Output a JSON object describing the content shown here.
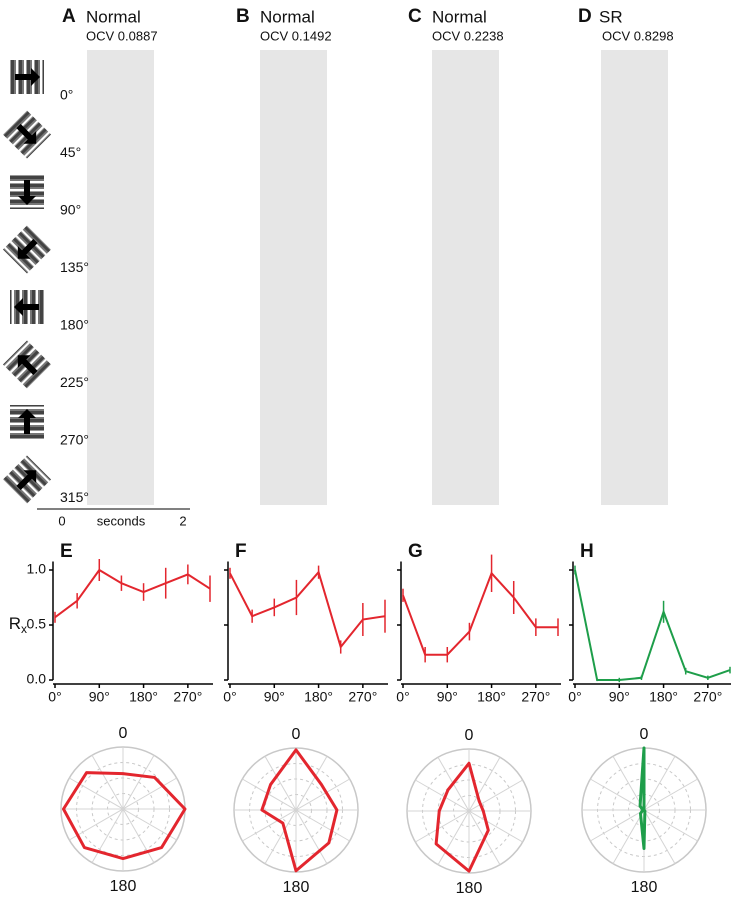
{
  "rasters": {
    "panels": [
      {
        "letter": "A",
        "condition": "Normal",
        "ocv": "OCV 0.0887"
      },
      {
        "letter": "B",
        "condition": "Normal",
        "ocv": "OCV 0.1492"
      },
      {
        "letter": "C",
        "condition": "Normal",
        "ocv": "OCV 0.2238"
      },
      {
        "letter": "D",
        "condition": "SR",
        "ocv": "OCV 0.8298"
      }
    ],
    "orientations": [
      "0°",
      "45°",
      "90°",
      "135°",
      "180°",
      "225°",
      "270°",
      "315°"
    ],
    "time_axis": {
      "start": "0",
      "label": "seconds",
      "end": "2"
    }
  },
  "chart_data": [
    {
      "type": "line",
      "letter": "E",
      "ylabel": {
        "base": "R",
        "sub": "x"
      },
      "x": [
        0,
        45,
        90,
        135,
        180,
        225,
        270,
        315
      ],
      "xlim": [
        0,
        315
      ],
      "ylim": [
        0,
        1.05
      ],
      "xticks": [
        {
          "value": 0,
          "label": "0°"
        },
        {
          "value": 90,
          "label": "90°"
        },
        {
          "value": 180,
          "label": "180°"
        },
        {
          "value": 270,
          "label": "270°"
        }
      ],
      "yticks": [
        {
          "value": 0,
          "label": "0.0"
        },
        0.5,
        {
          "value": 1,
          "label": "1.0"
        }
      ],
      "ytick_labels": true,
      "series": [
        {
          "color": "#e3262e",
          "values": [
            0.57,
            0.72,
            1.0,
            0.88,
            0.8,
            0.88,
            0.96,
            0.83
          ],
          "errors": [
            0.05,
            0.07,
            0.1,
            0.07,
            0.08,
            0.14,
            0.09,
            0.12
          ]
        }
      ],
      "polar": {
        "top_label": "0",
        "bottom_label": "180",
        "rlim": [
          0,
          1
        ]
      }
    },
    {
      "type": "line",
      "letter": "F",
      "x": [
        0,
        45,
        90,
        135,
        180,
        225,
        270,
        315
      ],
      "xlim": [
        0,
        315
      ],
      "ylim": [
        0,
        1.05
      ],
      "xticks": [
        {
          "value": 0,
          "label": "0°"
        },
        {
          "value": 90,
          "label": "90°"
        },
        {
          "value": 180,
          "label": "180°"
        },
        {
          "value": 270,
          "label": "270°"
        }
      ],
      "yticks": [
        0,
        0.5,
        1
      ],
      "ytick_labels": false,
      "series": [
        {
          "color": "#e3262e",
          "values": [
            0.97,
            0.58,
            0.66,
            0.75,
            0.98,
            0.3,
            0.55,
            0.58
          ],
          "errors": [
            0.05,
            0.06,
            0.08,
            0.16,
            0.06,
            0.06,
            0.15,
            0.15
          ]
        }
      ],
      "polar": {
        "top_label": "0",
        "bottom_label": "180",
        "rlim": [
          0,
          1
        ]
      }
    },
    {
      "type": "line",
      "letter": "G",
      "x": [
        0,
        45,
        90,
        135,
        180,
        225,
        270,
        315
      ],
      "xlim": [
        0,
        315
      ],
      "ylim": [
        0,
        1.05
      ],
      "xticks": [
        {
          "value": 0,
          "label": "0°"
        },
        {
          "value": 90,
          "label": "90°"
        },
        {
          "value": 180,
          "label": "180°"
        },
        {
          "value": 270,
          "label": "270°"
        }
      ],
      "yticks": [
        0,
        0.5,
        1
      ],
      "ytick_labels": false,
      "series": [
        {
          "color": "#e3262e",
          "values": [
            0.77,
            0.23,
            0.23,
            0.44,
            0.97,
            0.75,
            0.48,
            0.48
          ],
          "errors": [
            0.06,
            0.07,
            0.07,
            0.08,
            0.17,
            0.15,
            0.08,
            0.08
          ]
        }
      ],
      "polar": {
        "top_label": "0",
        "bottom_label": "180",
        "rlim": [
          0,
          1
        ]
      }
    },
    {
      "type": "line",
      "letter": "H",
      "x": [
        0,
        45,
        90,
        135,
        180,
        225,
        270,
        315
      ],
      "xlim": [
        0,
        315
      ],
      "ylim": [
        0,
        1.05
      ],
      "xticks": [
        {
          "value": 0,
          "label": "0°"
        },
        {
          "value": 90,
          "label": "90°"
        },
        {
          "value": 180,
          "label": "180°"
        },
        {
          "value": 270,
          "label": "270°"
        }
      ],
      "yticks": [
        0,
        0.5,
        1
      ],
      "ytick_labels": false,
      "series": [
        {
          "color": "#1e9e4a",
          "values": [
            1.0,
            0.0,
            0.0,
            0.02,
            0.62,
            0.08,
            0.02,
            0.09
          ],
          "errors": [
            0.04,
            0.01,
            0.02,
            0.02,
            0.1,
            0.03,
            0.02,
            0.03
          ]
        }
      ],
      "polar": {
        "top_label": "0",
        "bottom_label": "180",
        "rlim": [
          0,
          1
        ]
      }
    }
  ]
}
